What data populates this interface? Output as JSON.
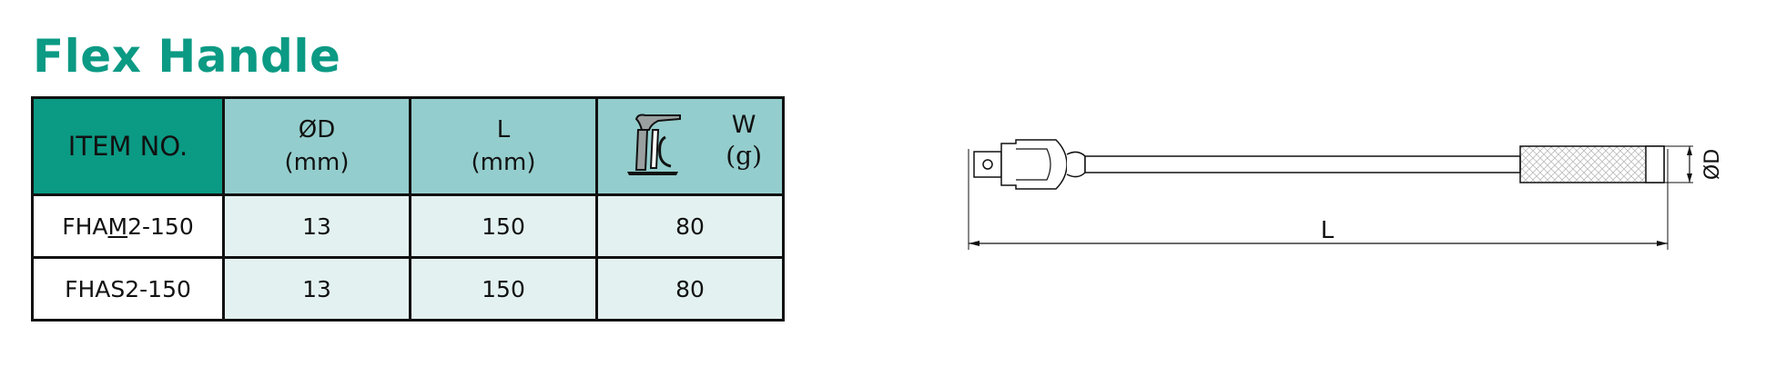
{
  "title": "Flex Handle",
  "table": {
    "headers": {
      "item": "ITEM NO.",
      "diameter": {
        "label": "ØD",
        "unit": "(mm)"
      },
      "length": {
        "label": "L",
        "unit": "(mm)"
      },
      "weight": {
        "label": "W",
        "unit": "(g)",
        "icon": "scale-icon"
      }
    },
    "rows": [
      {
        "item_pre": "FHA",
        "item_mark": "M",
        "item_post": "2-150",
        "diameter": "13",
        "length": "150",
        "weight": "80"
      },
      {
        "item_pre": "FHAS2-150",
        "item_mark": "",
        "item_post": "",
        "diameter": "13",
        "length": "150",
        "weight": "80"
      }
    ]
  },
  "drawing": {
    "length_label": "L",
    "diameter_label": "ØD"
  },
  "colors": {
    "title": "#0b9a84",
    "header_item_bg": "#0b9a84",
    "header_bg": "#94cdcd",
    "cell_bg": "#e3f2f1"
  }
}
